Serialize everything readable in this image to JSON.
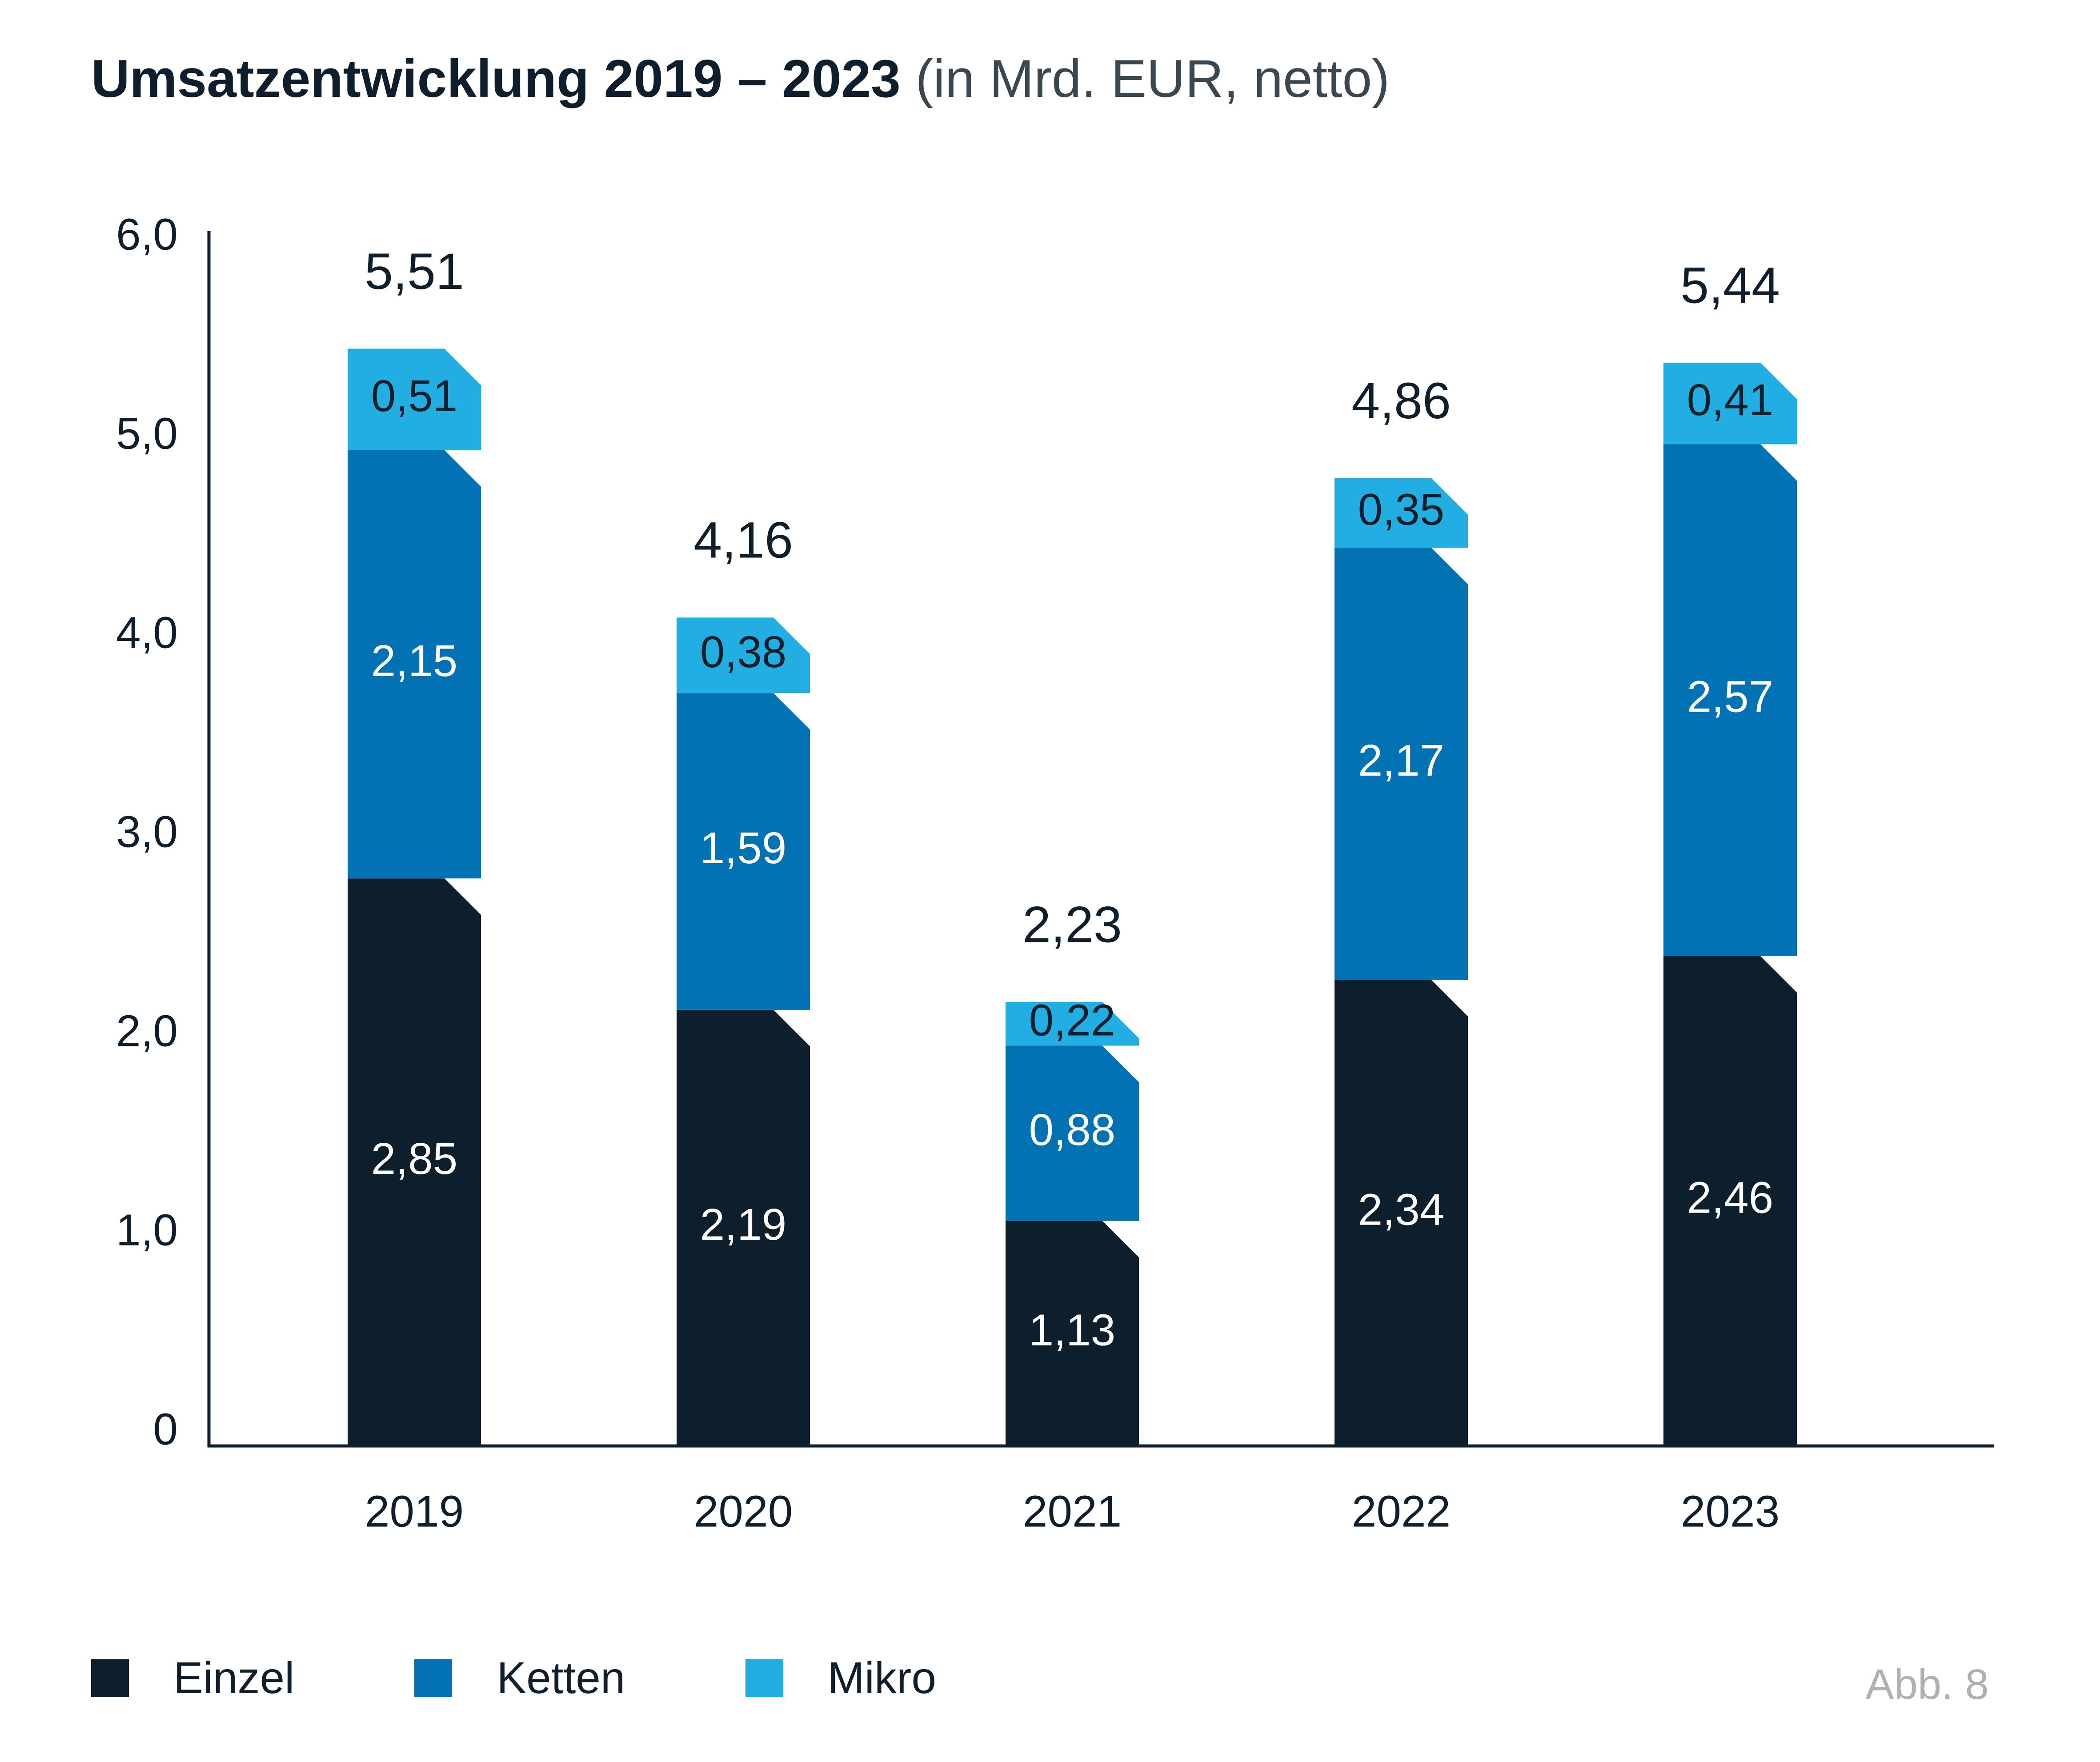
{
  "header": {
    "title_bold": "Umsatzentwicklung 2019 – 2023",
    "title_light": "(in Mrd. EUR, netto)"
  },
  "chart_data": {
    "type": "bar",
    "stacked": true,
    "categories": [
      "2019",
      "2020",
      "2021",
      "2022",
      "2023"
    ],
    "series": [
      {
        "name": "Einzel",
        "color": "#0d1e2c",
        "values": [
          2.85,
          2.19,
          1.13,
          2.34,
          2.46
        ],
        "labels": [
          "2,85",
          "2,19",
          "1,13",
          "2,34",
          "2,46"
        ]
      },
      {
        "name": "Ketten",
        "color": "#0272b5",
        "values": [
          2.15,
          1.59,
          0.88,
          2.17,
          2.57
        ],
        "labels": [
          "2,15",
          "1,59",
          "0,88",
          "2,17",
          "2,57"
        ]
      },
      {
        "name": "Mikro",
        "color": "#23aee2",
        "values": [
          0.51,
          0.38,
          0.22,
          0.35,
          0.41
        ],
        "labels": [
          "0,51",
          "0,38",
          "0,22",
          "0,35",
          "0,41"
        ]
      }
    ],
    "totals": [
      5.51,
      4.16,
      2.23,
      4.86,
      5.44
    ],
    "total_labels": [
      "5,51",
      "4,16",
      "2,23",
      "4,86",
      "5,44"
    ],
    "ylim": [
      0,
      6
    ],
    "yticks": [
      0,
      1,
      2,
      3,
      4,
      5,
      6
    ],
    "ytick_labels": [
      "0",
      "1,0",
      "2,0",
      "3,0",
      "4,0",
      "5,0",
      "6,0"
    ],
    "legend_position": "bottom-left",
    "grid": false
  },
  "legend": [
    {
      "label": "Einzel",
      "color": "#0d1e2c"
    },
    {
      "label": "Ketten",
      "color": "#0272b5"
    },
    {
      "label": "Mikro",
      "color": "#23aee2"
    }
  ],
  "figure_ref": "Abb. 8"
}
